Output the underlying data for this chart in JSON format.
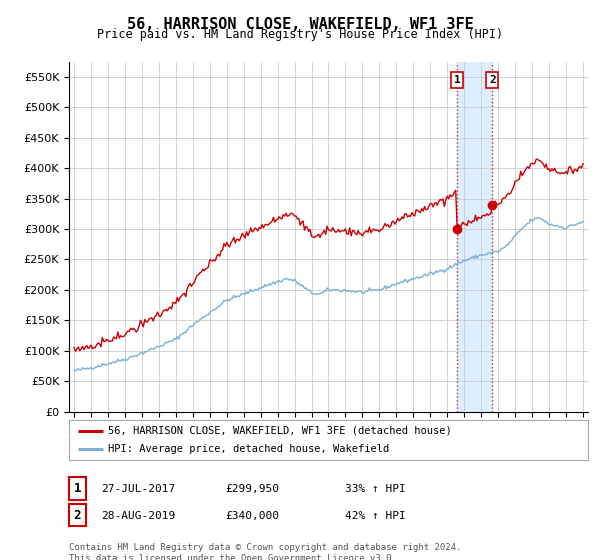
{
  "title": "56, HARRISON CLOSE, WAKEFIELD, WF1 3FE",
  "subtitle": "Price paid vs. HM Land Registry's House Price Index (HPI)",
  "legend_label_red": "56, HARRISON CLOSE, WAKEFIELD, WF1 3FE (detached house)",
  "legend_label_blue": "HPI: Average price, detached house, Wakefield",
  "footnote": "Contains HM Land Registry data © Crown copyright and database right 2024.\nThis data is licensed under the Open Government Licence v3.0.",
  "transaction1": {
    "num": "1",
    "date": "27-JUL-2017",
    "price": "£299,950",
    "hpi": "33% ↑ HPI"
  },
  "transaction2": {
    "num": "2",
    "date": "28-AUG-2019",
    "price": "£340,000",
    "hpi": "42% ↑ HPI"
  },
  "sale1_year": 2017.58,
  "sale1_price": 299950,
  "sale2_year": 2019.66,
  "sale2_price": 340000,
  "red_color": "#cc0000",
  "blue_color": "#7bafd4",
  "highlight_color": "#ddeeff",
  "box_color": "#cc0000",
  "ylim_min": 0,
  "ylim_max": 575000,
  "xlim_min": 1994.7,
  "xlim_max": 2025.3,
  "background_color": "#ffffff",
  "grid_color": "#cccccc",
  "title_fontsize": 11,
  "subtitle_fontsize": 8.5
}
